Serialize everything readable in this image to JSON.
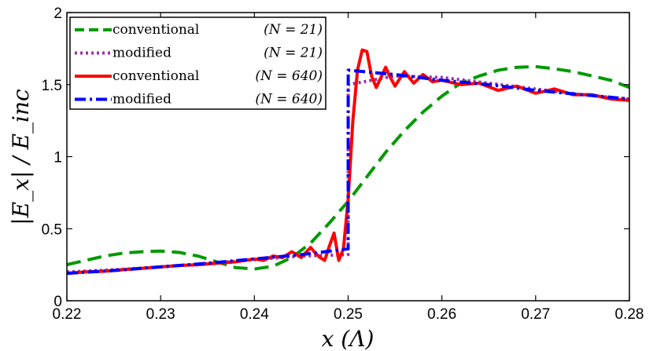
{
  "chart_data": {
    "type": "line",
    "title": "",
    "xlabel": "x (Λ)",
    "ylabel": "|E_x| / E_inc",
    "xlim": [
      0.22,
      0.28
    ],
    "ylim": [
      0,
      2
    ],
    "x_ticks": [
      "0.22",
      "0.23",
      "0.24",
      "0.25",
      "0.26",
      "0.27",
      "0.28"
    ],
    "y_ticks": [
      "0",
      "0.5",
      "1",
      "1.5",
      "2"
    ],
    "legend_position": "top-left",
    "grid": false,
    "series": [
      {
        "name": "conventional",
        "n_label": "(N = 21)",
        "color": "#009900",
        "style": "dashed",
        "x": [
          0.22,
          0.222,
          0.224,
          0.226,
          0.228,
          0.23,
          0.232,
          0.234,
          0.236,
          0.238,
          0.24,
          0.242,
          0.244,
          0.246,
          0.248,
          0.25,
          0.252,
          0.254,
          0.256,
          0.258,
          0.26,
          0.262,
          0.264,
          0.266,
          0.268,
          0.27,
          0.272,
          0.274,
          0.276,
          0.278,
          0.28
        ],
        "y": [
          0.25,
          0.28,
          0.31,
          0.33,
          0.34,
          0.345,
          0.335,
          0.31,
          0.27,
          0.23,
          0.22,
          0.24,
          0.3,
          0.4,
          0.54,
          0.69,
          0.86,
          1.03,
          1.18,
          1.31,
          1.42,
          1.51,
          1.56,
          1.6,
          1.62,
          1.625,
          1.61,
          1.59,
          1.56,
          1.53,
          1.48
        ]
      },
      {
        "name": "modified",
        "n_label": "(N = 21)",
        "color": "#9b30a6",
        "style": "dotted",
        "x": [
          0.22,
          0.225,
          0.23,
          0.235,
          0.24,
          0.245,
          0.25,
          0.25001,
          0.255,
          0.26,
          0.265,
          0.27,
          0.275,
          0.28
        ],
        "y": [
          0.2,
          0.215,
          0.235,
          0.26,
          0.285,
          0.31,
          0.32,
          1.5,
          1.56,
          1.55,
          1.51,
          1.47,
          1.43,
          1.4
        ]
      },
      {
        "name": "conventional",
        "n_label": "(N = 640)",
        "color": "#ff0000",
        "style": "solid",
        "x": [
          0.22,
          0.222,
          0.224,
          0.226,
          0.228,
          0.23,
          0.232,
          0.234,
          0.236,
          0.238,
          0.239,
          0.24,
          0.241,
          0.242,
          0.243,
          0.244,
          0.245,
          0.246,
          0.2465,
          0.247,
          0.2475,
          0.248,
          0.2485,
          0.249,
          0.2495,
          0.25,
          0.2505,
          0.251,
          0.2515,
          0.252,
          0.2525,
          0.253,
          0.2535,
          0.254,
          0.2545,
          0.255,
          0.2555,
          0.256,
          0.257,
          0.258,
          0.259,
          0.26,
          0.262,
          0.264,
          0.266,
          0.268,
          0.27,
          0.272,
          0.274,
          0.276,
          0.278,
          0.28
        ],
        "y": [
          0.19,
          0.2,
          0.205,
          0.215,
          0.225,
          0.235,
          0.245,
          0.25,
          0.26,
          0.27,
          0.28,
          0.29,
          0.28,
          0.31,
          0.3,
          0.34,
          0.3,
          0.37,
          0.33,
          0.3,
          0.28,
          0.38,
          0.47,
          0.28,
          0.36,
          0.7,
          1.25,
          1.6,
          1.74,
          1.73,
          1.56,
          1.48,
          1.55,
          1.62,
          1.55,
          1.49,
          1.54,
          1.59,
          1.51,
          1.57,
          1.52,
          1.53,
          1.5,
          1.51,
          1.46,
          1.49,
          1.44,
          1.47,
          1.43,
          1.43,
          1.4,
          1.39
        ]
      },
      {
        "name": "modified",
        "n_label": "(N = 640)",
        "color": "#0000ff",
        "style": "dashdot",
        "x": [
          0.22,
          0.225,
          0.23,
          0.235,
          0.24,
          0.245,
          0.25,
          0.25001,
          0.255,
          0.26,
          0.265,
          0.27,
          0.275,
          0.28
        ],
        "y": [
          0.19,
          0.21,
          0.235,
          0.26,
          0.29,
          0.32,
          0.36,
          1.6,
          1.57,
          1.53,
          1.5,
          1.46,
          1.43,
          1.4
        ]
      }
    ]
  }
}
